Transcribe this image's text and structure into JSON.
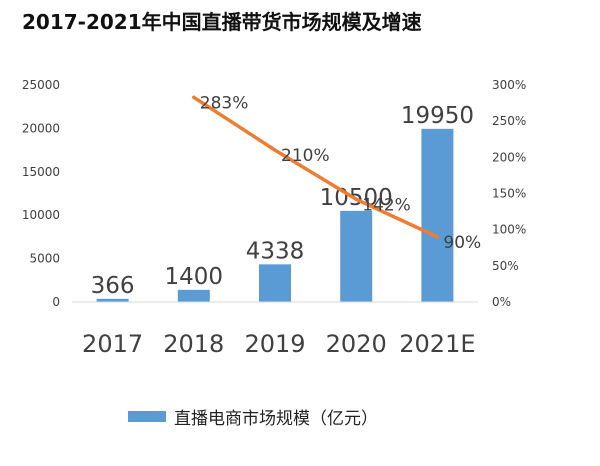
{
  "chart_data": {
    "type": "bar",
    "title": "2017-2021年中国直播带货市场规模及增速",
    "categories": [
      "2017",
      "2018",
      "2019",
      "2020",
      "2021E"
    ],
    "series": [
      {
        "name": "直播电商市场规模（亿元）",
        "type": "bar",
        "axis": "left",
        "values": [
          366,
          1400,
          4338,
          10500,
          19950
        ],
        "data_labels": [
          "366",
          "1400",
          "4338",
          "10500",
          "19950"
        ],
        "color": "#5B9BD5"
      },
      {
        "type": "line",
        "axis": "right",
        "x": [
          "2018",
          "2019",
          "2020",
          "2021E"
        ],
        "values": [
          283,
          210,
          142,
          90
        ],
        "data_labels": [
          "283%",
          "210%",
          "142%",
          "90%"
        ],
        "color": "#ED7D31"
      }
    ],
    "y_left": {
      "ylim": [
        0,
        25000
      ],
      "ticks": [
        "0",
        "5000",
        "10000",
        "15000",
        "20000",
        "25000"
      ]
    },
    "y_right": {
      "ylim": [
        0,
        300
      ],
      "ticks": [
        "0%",
        "50%",
        "100%",
        "150%",
        "200%",
        "250%",
        "300%"
      ]
    },
    "grid": false,
    "legend": {
      "position": "bottom-left"
    }
  }
}
